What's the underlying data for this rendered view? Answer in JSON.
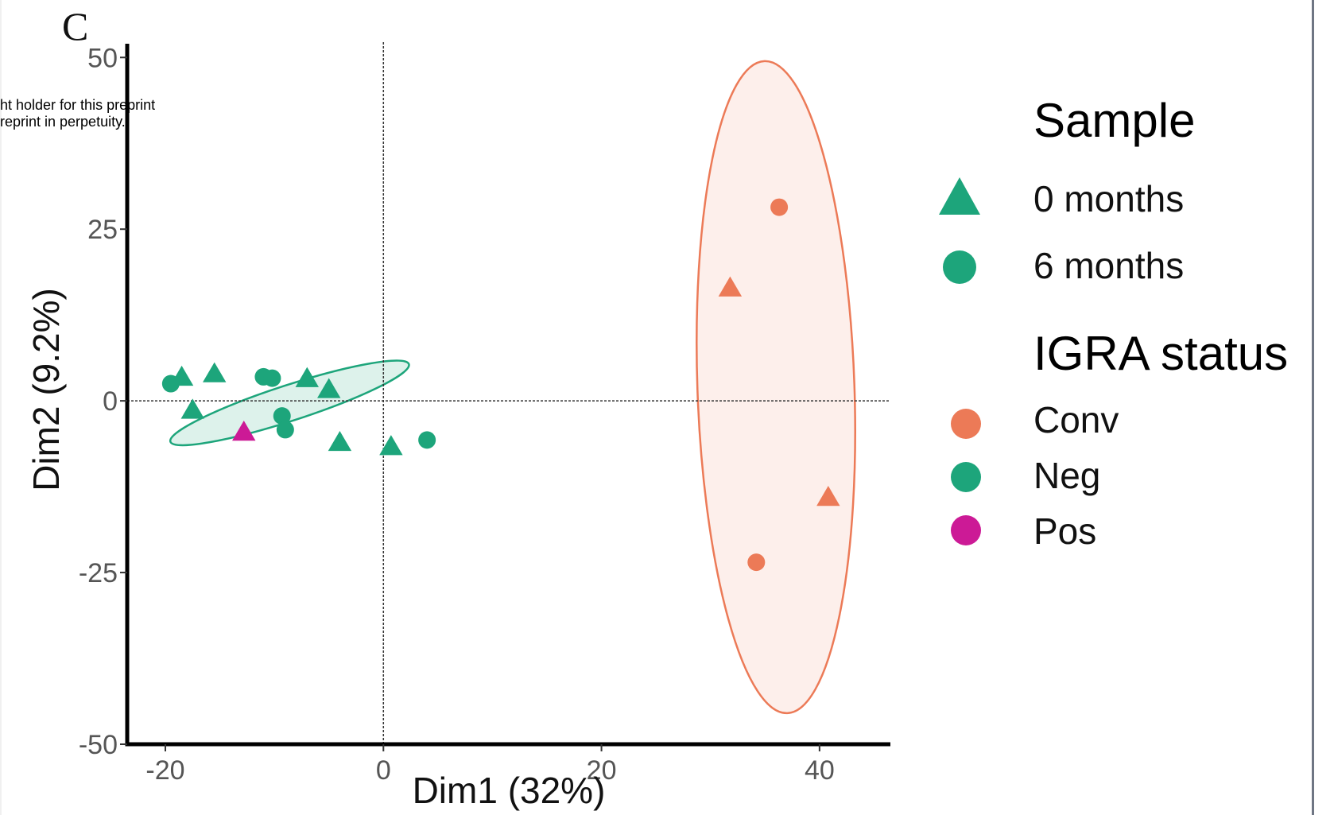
{
  "panel_letter": "C",
  "watermark": {
    "line1": "ht holder for this preprint",
    "line2": "reprint in perpetuity."
  },
  "colors": {
    "Conv": "#ec7a57",
    "Neg": "#1da57b",
    "Pos": "#cc1a96"
  },
  "legend": {
    "sample_title": "Sample",
    "sample_items": [
      {
        "label": "0 months",
        "shape": "triangle"
      },
      {
        "label": "6 months",
        "shape": "circle"
      }
    ],
    "igra_title": "IGRA status",
    "igra_items": [
      {
        "label": "Conv",
        "color": "#ec7a57"
      },
      {
        "label": "Neg",
        "color": "#1da57b"
      },
      {
        "label": "Pos",
        "color": "#cc1a96"
      }
    ]
  },
  "chart_data": {
    "type": "scatter",
    "title": "",
    "xlabel": "Dim1 (32%)",
    "ylabel": "Dim2 (9.2%)",
    "xlim": [
      -23.5,
      46.5
    ],
    "ylim": [
      -50,
      52
    ],
    "xticks": [
      -20,
      0,
      20,
      40
    ],
    "yticks": [
      -50,
      -25,
      0,
      25,
      50
    ],
    "reference_lines": {
      "x": 0,
      "y": 0,
      "style": "dashed"
    },
    "grid": false,
    "legend_position": "right",
    "points": [
      {
        "x": -19.5,
        "y": 2.5,
        "sample": "6 months",
        "igra": "Neg"
      },
      {
        "x": -18.5,
        "y": 3.5,
        "sample": "0 months",
        "igra": "Neg"
      },
      {
        "x": -15.5,
        "y": 4.0,
        "sample": "0 months",
        "igra": "Neg"
      },
      {
        "x": -17.5,
        "y": -1.3,
        "sample": "0 months",
        "igra": "Neg"
      },
      {
        "x": -11.0,
        "y": 3.5,
        "sample": "6 months",
        "igra": "Neg"
      },
      {
        "x": -10.2,
        "y": 3.3,
        "sample": "6 months",
        "igra": "Neg"
      },
      {
        "x": -7.0,
        "y": 3.3,
        "sample": "0 months",
        "igra": "Neg"
      },
      {
        "x": -5.0,
        "y": 1.7,
        "sample": "0 months",
        "igra": "Neg"
      },
      {
        "x": -9.3,
        "y": -2.2,
        "sample": "6 months",
        "igra": "Neg"
      },
      {
        "x": -9.0,
        "y": -4.2,
        "sample": "6 months",
        "igra": "Neg"
      },
      {
        "x": -4.0,
        "y": -6.0,
        "sample": "0 months",
        "igra": "Neg"
      },
      {
        "x": 0.7,
        "y": -6.6,
        "sample": "0 months",
        "igra": "Neg"
      },
      {
        "x": 4.0,
        "y": -5.7,
        "sample": "6 months",
        "igra": "Neg"
      },
      {
        "x": -12.8,
        "y": -4.5,
        "sample": "0 months",
        "igra": "Pos"
      },
      {
        "x": 36.3,
        "y": 28.2,
        "sample": "6 months",
        "igra": "Conv"
      },
      {
        "x": 31.8,
        "y": 16.5,
        "sample": "0 months",
        "igra": "Conv"
      },
      {
        "x": 40.8,
        "y": -14.0,
        "sample": "0 months",
        "igra": "Conv"
      },
      {
        "x": 34.2,
        "y": -23.5,
        "sample": "6 months",
        "igra": "Conv"
      }
    ],
    "ellipses": [
      {
        "group": "Neg",
        "cx": -8.6,
        "cy": -0.3,
        "rx": 11.5,
        "ry": 2.6,
        "angle_deg": -18
      },
      {
        "group": "Conv",
        "cx": 36.0,
        "cy": 2.0,
        "rx": 7.2,
        "ry": 47.5,
        "angle_deg": -2
      }
    ]
  }
}
